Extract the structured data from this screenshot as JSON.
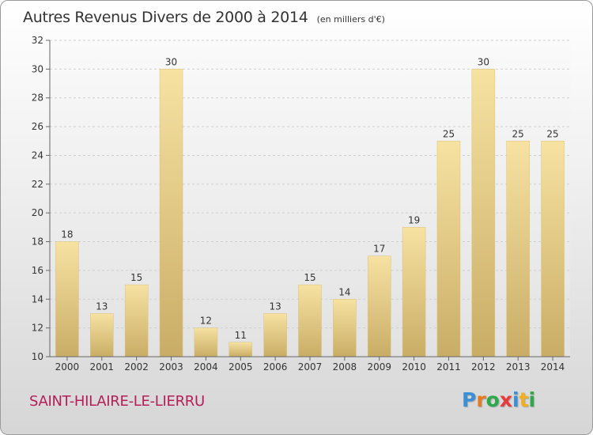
{
  "header": {
    "title": "Autres Revenus Divers de 2000 à 2014",
    "unit": "(en milliers d'€)"
  },
  "footer": {
    "city": "SAINT-HILAIRE-LE-LIERRU",
    "logo": {
      "text": "Proxiti",
      "colors": [
        "#3a8fd6",
        "#e87a1e",
        "#2ea84a",
        "#e83a3a",
        "#3a8fd6",
        "#f2b01e",
        "#2ea84a"
      ]
    }
  },
  "chart_data": {
    "type": "bar",
    "title": "Autres Revenus Divers de 2000 à 2014",
    "categories": [
      "2000",
      "2001",
      "2002",
      "2003",
      "2004",
      "2005",
      "2006",
      "2007",
      "2008",
      "2009",
      "2010",
      "2011",
      "2012",
      "2013",
      "2014"
    ],
    "values": [
      18,
      13,
      15,
      30,
      12,
      11,
      13,
      15,
      14,
      17,
      19,
      25,
      30,
      25,
      25
    ],
    "data_labels": [
      "18",
      "13",
      "15",
      "30",
      "12",
      "11",
      "13",
      "15",
      "14",
      "17",
      "19",
      "25",
      "30",
      "25",
      "25"
    ],
    "ylim": [
      10,
      32
    ],
    "yticks": [
      10,
      12,
      14,
      16,
      18,
      20,
      22,
      24,
      26,
      28,
      30,
      32
    ],
    "ytick_labels": [
      "10",
      "12",
      "14",
      "16",
      "18",
      "20",
      "22",
      "24",
      "26",
      "28",
      "30",
      "32"
    ],
    "grid": true,
    "bar_color": "#e8cf88",
    "xlabel": "",
    "ylabel": ""
  }
}
